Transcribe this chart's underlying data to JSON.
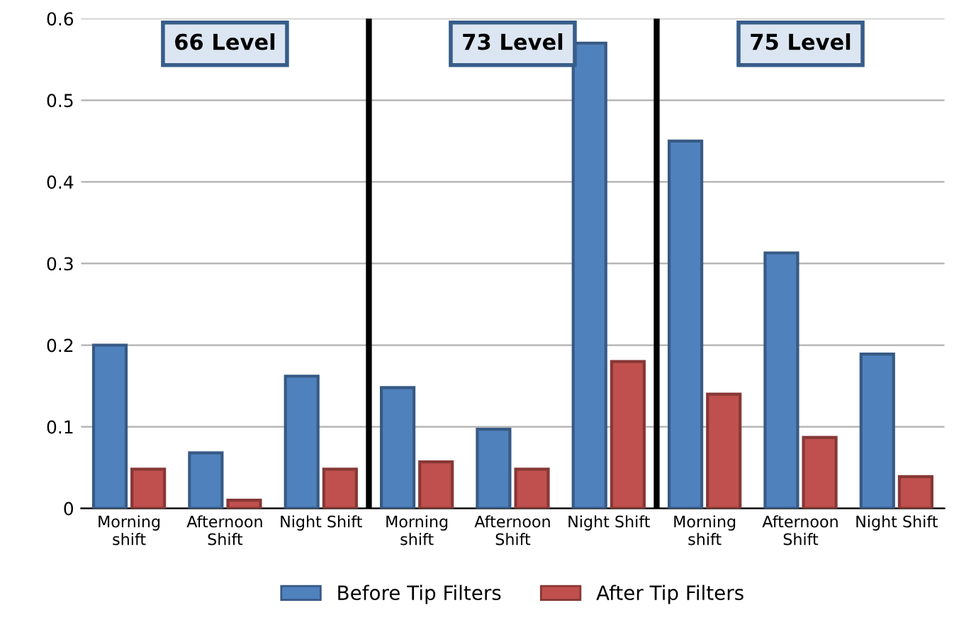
{
  "chart_data": {
    "type": "bar",
    "categories": [
      "Morning\nshift",
      "Afternoon\nShift",
      "Night Shift",
      "Morning\nshift",
      "Afternoon\nShift",
      "Night Shift",
      "Morning\nshift",
      "Afternoon\nShift",
      "Night Shift"
    ],
    "series": [
      {
        "name": "Before Tip Filters",
        "color": "#4f81bd",
        "values": [
          0.2,
          0.068,
          0.162,
          0.148,
          0.097,
          0.57,
          0.45,
          0.313,
          0.189
        ]
      },
      {
        "name": "After Tip Filters",
        "color": "#c0504d",
        "values": [
          0.048,
          0.01,
          0.048,
          0.057,
          0.048,
          0.18,
          0.14,
          0.087,
          0.039
        ]
      }
    ],
    "ylim": [
      0,
      0.6
    ],
    "yticks": [
      0,
      0.1,
      0.2,
      0.3,
      0.4,
      0.5,
      0.6
    ],
    "grid": "y",
    "legend": "bottom",
    "annotations": [
      "66 Level",
      "73 Level",
      "75 Level"
    ]
  }
}
